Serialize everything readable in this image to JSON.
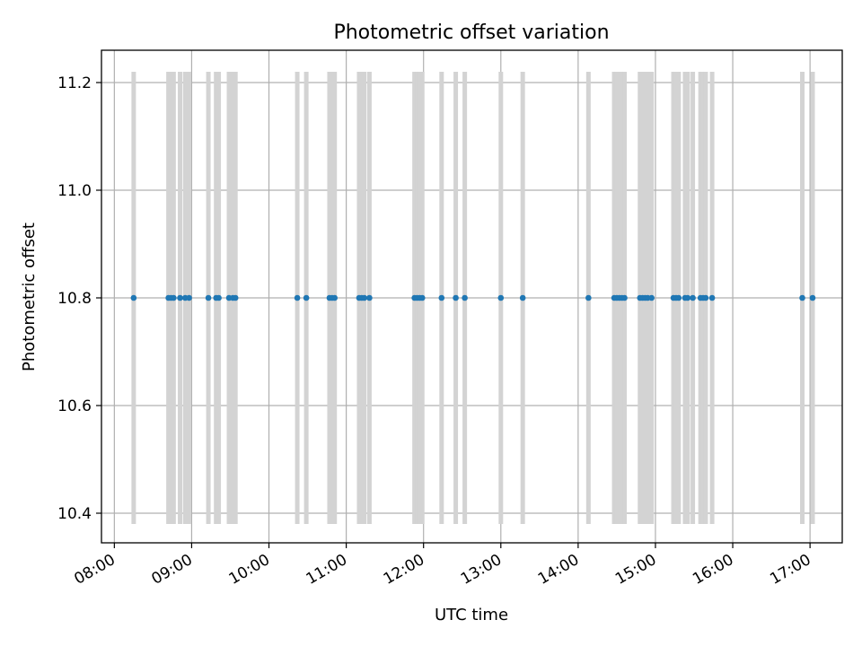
{
  "chart_data": {
    "type": "scatter",
    "title": "Photometric offset variation",
    "xlabel": "UTC time",
    "ylabel": "Photometric offset",
    "xlim": [
      "07:50",
      "17:25"
    ],
    "ylim": [
      10.345,
      11.26
    ],
    "x_ticks": [
      "08:00",
      "09:00",
      "10:00",
      "11:00",
      "12:00",
      "13:00",
      "14:00",
      "15:00",
      "16:00",
      "17:00"
    ],
    "y_ticks": [
      "10.4",
      "10.6",
      "10.8",
      "11.0",
      "11.2"
    ],
    "grid": true,
    "marker_color": "#1f77b4",
    "band_color": "#d3d3d3",
    "band_range": [
      10.38,
      11.22
    ],
    "points": [
      {
        "x": "08:15",
        "y": 10.8
      },
      {
        "x": "08:42",
        "y": 10.8
      },
      {
        "x": "08:44",
        "y": 10.8
      },
      {
        "x": "08:46",
        "y": 10.8
      },
      {
        "x": "08:51",
        "y": 10.8
      },
      {
        "x": "08:55",
        "y": 10.8
      },
      {
        "x": "08:58",
        "y": 10.8
      },
      {
        "x": "09:13",
        "y": 10.8
      },
      {
        "x": "09:19",
        "y": 10.8
      },
      {
        "x": "09:21",
        "y": 10.8
      },
      {
        "x": "09:29",
        "y": 10.8
      },
      {
        "x": "09:32",
        "y": 10.8
      },
      {
        "x": "09:34",
        "y": 10.8
      },
      {
        "x": "10:22",
        "y": 10.8
      },
      {
        "x": "10:29",
        "y": 10.8
      },
      {
        "x": "10:47",
        "y": 10.8
      },
      {
        "x": "10:49",
        "y": 10.8
      },
      {
        "x": "10:51",
        "y": 10.8
      },
      {
        "x": "11:10",
        "y": 10.8
      },
      {
        "x": "11:12",
        "y": 10.8
      },
      {
        "x": "11:14",
        "y": 10.8
      },
      {
        "x": "11:18",
        "y": 10.8
      },
      {
        "x": "11:53",
        "y": 10.8
      },
      {
        "x": "11:55",
        "y": 10.8
      },
      {
        "x": "11:57",
        "y": 10.8
      },
      {
        "x": "11:59",
        "y": 10.8
      },
      {
        "x": "12:14",
        "y": 10.8
      },
      {
        "x": "12:25",
        "y": 10.8
      },
      {
        "x": "12:32",
        "y": 10.8
      },
      {
        "x": "13:00",
        "y": 10.8
      },
      {
        "x": "13:17",
        "y": 10.8
      },
      {
        "x": "14:08",
        "y": 10.8
      },
      {
        "x": "14:28",
        "y": 10.8
      },
      {
        "x": "14:30",
        "y": 10.8
      },
      {
        "x": "14:32",
        "y": 10.8
      },
      {
        "x": "14:34",
        "y": 10.8
      },
      {
        "x": "14:36",
        "y": 10.8
      },
      {
        "x": "14:48",
        "y": 10.8
      },
      {
        "x": "14:50",
        "y": 10.8
      },
      {
        "x": "14:52",
        "y": 10.8
      },
      {
        "x": "14:54",
        "y": 10.8
      },
      {
        "x": "14:57",
        "y": 10.8
      },
      {
        "x": "15:14",
        "y": 10.8
      },
      {
        "x": "15:16",
        "y": 10.8
      },
      {
        "x": "15:18",
        "y": 10.8
      },
      {
        "x": "15:23",
        "y": 10.8
      },
      {
        "x": "15:25",
        "y": 10.8
      },
      {
        "x": "15:29",
        "y": 10.8
      },
      {
        "x": "15:35",
        "y": 10.8
      },
      {
        "x": "15:37",
        "y": 10.8
      },
      {
        "x": "15:39",
        "y": 10.8
      },
      {
        "x": "15:44",
        "y": 10.8
      },
      {
        "x": "16:54",
        "y": 10.8
      },
      {
        "x": "17:02",
        "y": 10.8
      }
    ]
  }
}
